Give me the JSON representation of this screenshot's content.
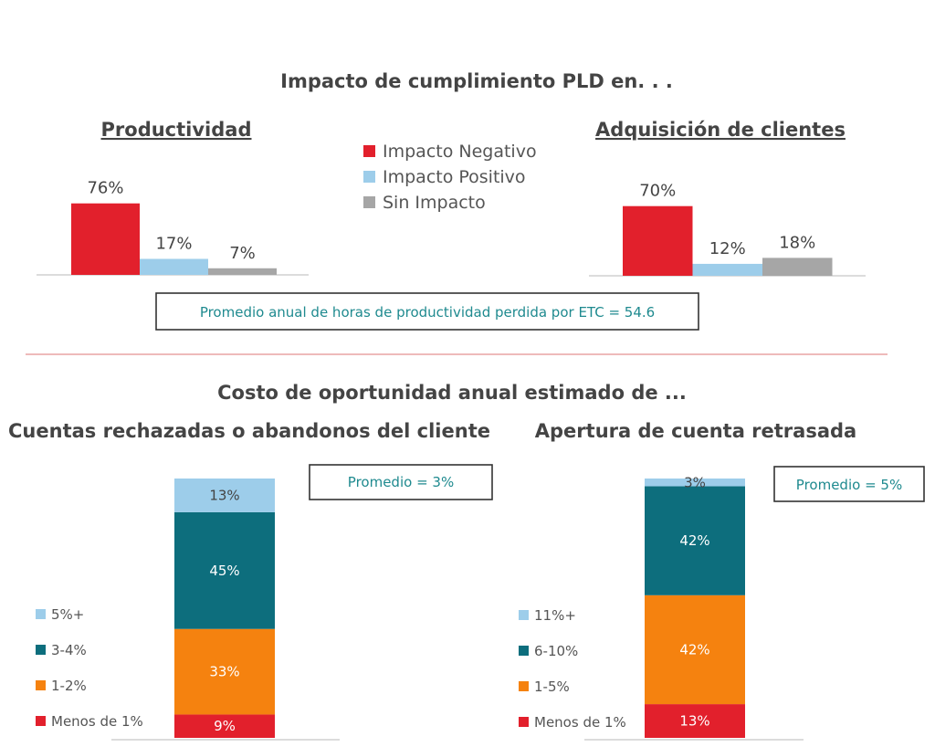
{
  "top_title": "Impacto de cumplimiento PLD en. . .",
  "legend_top": [
    {
      "label": "Impacto Negativo",
      "color": "#e2202c"
    },
    {
      "label": "Impacto Positivo",
      "color": "#9dcdea"
    },
    {
      "label": "Sin Impacto",
      "color": "#a6a6a6"
    }
  ],
  "productivity_box": "Promedio anual de horas de productividad perdida por ETC = 54.6",
  "bottom_title": "Costo de oportunidad anual estimado de ...",
  "colors": {
    "red": "#e2202c",
    "light_blue": "#9dcdea",
    "gray": "#a6a6a6",
    "teal": "#0d6e7d",
    "orange": "#f5820f",
    "divider": "#e8a3a3",
    "accent_text": "#1f8a8f"
  },
  "chart_data": [
    {
      "type": "bar",
      "title": "Productividad",
      "categories": [
        "Impacto Negativo",
        "Impacto Positivo",
        "Sin Impacto"
      ],
      "values": [
        76,
        17,
        7
      ],
      "labels": [
        "76%",
        "17%",
        "7%"
      ],
      "ylim": [
        0,
        100
      ]
    },
    {
      "type": "bar",
      "title": "Adquisición de clientes",
      "categories": [
        "Impacto Negativo",
        "Impacto Positivo",
        "Sin Impacto"
      ],
      "values": [
        70,
        12,
        18
      ],
      "labels": [
        "70%",
        "12%",
        "18%"
      ],
      "ylim": [
        0,
        100
      ]
    },
    {
      "type": "stacked_bar",
      "title": "Cuentas rechazadas o abandonos del cliente",
      "annotation": "Promedio = 3%",
      "series": [
        {
          "name": "Menos de 1%",
          "value": 9,
          "label": "9%",
          "color": "#e2202c"
        },
        {
          "name": "1-2%",
          "value": 33,
          "label": "33%",
          "color": "#f5820f"
        },
        {
          "name": "3-4%",
          "value": 45,
          "label": "45%",
          "color": "#0d6e7d"
        },
        {
          "name": "5%+",
          "value": 13,
          "label": "13%",
          "color": "#9dcdea"
        }
      ]
    },
    {
      "type": "stacked_bar",
      "title": "Apertura de cuenta retrasada",
      "annotation": "Promedio = 5%",
      "series": [
        {
          "name": "Menos de 1%",
          "value": 13,
          "label": "13%",
          "color": "#e2202c"
        },
        {
          "name": "1-5%",
          "value": 42,
          "label": "42%",
          "color": "#f5820f"
        },
        {
          "name": "6-10%",
          "value": 42,
          "label": "42%",
          "color": "#0d6e7d"
        },
        {
          "name": "11%+",
          "value": 3,
          "label": "3%",
          "color": "#9dcdea"
        }
      ]
    }
  ]
}
